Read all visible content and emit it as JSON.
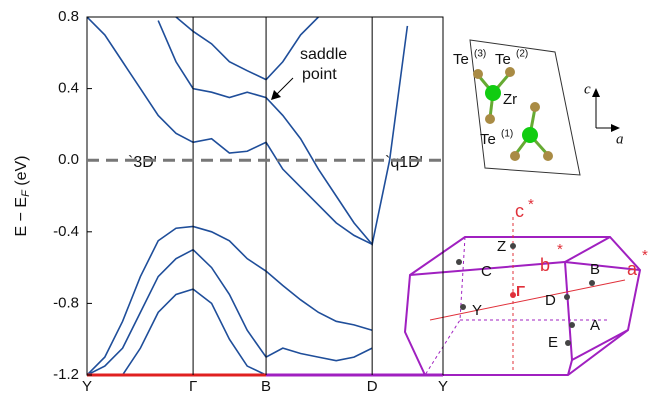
{
  "chart_data": {
    "type": "line",
    "ylabel": {
      "main": "E − E",
      "sub": "F",
      "unit": " (eV)"
    },
    "x": [
      0,
      0.05,
      0.1,
      0.15,
      0.2,
      0.25,
      0.298,
      0.35,
      0.4,
      0.45,
      0.503,
      0.55,
      0.6,
      0.65,
      0.7,
      0.75,
      0.801,
      0.85,
      0.9,
      0.95,
      1.0
    ],
    "xlim": [
      0,
      1
    ],
    "xticks": [
      {
        "value": 0,
        "label": "Y"
      },
      {
        "value": 0.298,
        "label": "Γ"
      },
      {
        "value": 0.503,
        "label": "B"
      },
      {
        "value": 0.801,
        "label": "D"
      },
      {
        "value": 1.0,
        "label": "Y"
      }
    ],
    "ylim": [
      -1.2,
      0.8
    ],
    "yticks": [
      {
        "value": -1.2,
        "label": "-1.2"
      },
      {
        "value": -0.8,
        "label": "-0.8"
      },
      {
        "value": -0.4,
        "label": "-0.4"
      },
      {
        "value": 0,
        "label": "0.0"
      },
      {
        "value": 0.4,
        "label": "0.4"
      },
      {
        "value": 0.8,
        "label": "0.8"
      }
    ],
    "fermi_level": 0,
    "series": [
      {
        "color": "#1f4e9a",
        "values": [
          null,
          null,
          null,
          null,
          0.78,
          0.55,
          0.4,
          0.38,
          0.35,
          0.38,
          0.35,
          0.25,
          0.12,
          -0.05,
          -0.2,
          -0.35,
          -0.47,
          0.0,
          0.75,
          null,
          null
        ]
      },
      {
        "color": "#1f4e9a",
        "values": [
          null,
          null,
          null,
          null,
          null,
          0.8,
          0.72,
          0.65,
          0.55,
          0.5,
          0.45,
          0.55,
          0.7,
          0.8,
          null,
          null,
          null,
          null,
          null,
          null,
          null
        ]
      },
      {
        "color": "#1f4e9a",
        "values": [
          0.8,
          0.7,
          0.55,
          0.4,
          0.25,
          0.15,
          0.1,
          0.12,
          0.04,
          0.05,
          0.1,
          -0.05,
          -0.15,
          -0.25,
          -0.35,
          -0.42,
          -0.47,
          null,
          null,
          null,
          null
        ]
      },
      {
        "color": "#1f4e9a",
        "values": [
          -1.2,
          -1.1,
          -0.9,
          -0.65,
          -0.45,
          -0.38,
          -0.37,
          -0.4,
          -0.45,
          -0.55,
          -0.62,
          -0.7,
          -0.78,
          -0.85,
          -0.9,
          -0.92,
          -0.95,
          null,
          null,
          null,
          null
        ]
      },
      {
        "color": "#1f4e9a",
        "values": [
          -1.2,
          -1.15,
          -1.05,
          -0.85,
          -0.65,
          -0.55,
          -0.5,
          -0.6,
          -0.75,
          -0.95,
          -1.1,
          -1.05,
          -1.08,
          -1.1,
          -1.12,
          -1.1,
          -1.05,
          null,
          null,
          null,
          null
        ]
      },
      {
        "color": "#1f4e9a",
        "values": [
          null,
          null,
          -1.2,
          -1.05,
          -0.85,
          -0.75,
          -0.72,
          -0.8,
          -1.0,
          -1.15,
          -1.2,
          null,
          null,
          null,
          null,
          null,
          null,
          null,
          null,
          null,
          null
        ]
      }
    ],
    "annotations": {
      "saddle1": "saddle",
      "saddle2": "point",
      "left": "`3D'",
      "right": "`q1D'"
    },
    "crystal": {
      "te": "Te",
      "te3": "(3)",
      "te2": "(2)",
      "te1": "(1)",
      "zr": "Zr",
      "c": "c",
      "a": "a"
    },
    "bz": {
      "cstar": "c",
      "bstar": "b",
      "astar": "a",
      "star": "*",
      "Z": "Z",
      "C": "C",
      "B": "B",
      "Y": "Y",
      "G": "Γ",
      "D": "D",
      "A": "A",
      "E": "E"
    }
  }
}
